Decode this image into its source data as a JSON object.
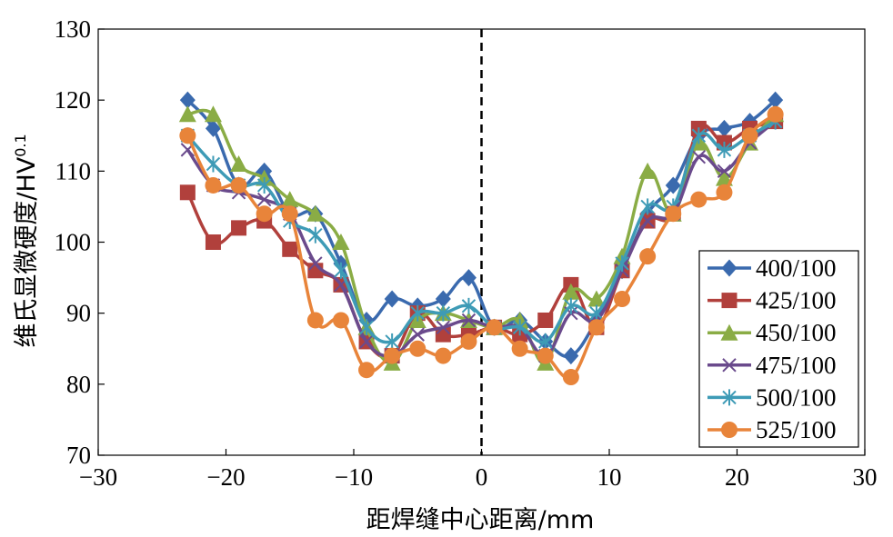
{
  "chart_data": {
    "type": "line",
    "xlabel": "距焊缝中心距离/mm",
    "ylabel": "维氏显微硬度/HV",
    "ylabel_sup": "0.1",
    "xlim": [
      -30,
      30
    ],
    "ylim": [
      70,
      130
    ],
    "xticks": [
      -30,
      -20,
      -10,
      0,
      10,
      20,
      30
    ],
    "xtick_labels": [
      "−30",
      "−20",
      "−10",
      "0",
      "10",
      "20",
      "30"
    ],
    "yticks": [
      70,
      80,
      90,
      100,
      110,
      120,
      130
    ],
    "ytick_labels": [
      "70",
      "80",
      "90",
      "100",
      "110",
      "120",
      "130"
    ],
    "grid": false,
    "legend_position": "right",
    "reference_line": {
      "x": 0,
      "style": "dashed"
    },
    "x": [
      -23,
      -21,
      -19,
      -17,
      -15,
      -13,
      -11,
      -9,
      -7,
      -5,
      -3,
      -1,
      1,
      3,
      5,
      7,
      9,
      11,
      13,
      15,
      17,
      19,
      21,
      23
    ],
    "series": [
      {
        "name": "400/100",
        "color": "#3a6aae",
        "marker": "diamond",
        "values": [
          120,
          116,
          108,
          110,
          104,
          104,
          97,
          89,
          92,
          91,
          92,
          95,
          88,
          89,
          86,
          84,
          89,
          96,
          104,
          108,
          115,
          116,
          117,
          120
        ]
      },
      {
        "name": "425/100",
        "color": "#b1403c",
        "marker": "square",
        "values": [
          107,
          100,
          102,
          103,
          99,
          96,
          94,
          86,
          84,
          90,
          87,
          87,
          88,
          87,
          89,
          94,
          88,
          96,
          103,
          104,
          116,
          114,
          116,
          117
        ]
      },
      {
        "name": "450/100",
        "color": "#8aac45",
        "marker": "triangle",
        "values": [
          118,
          118,
          111,
          109,
          106,
          104,
          100,
          88,
          83,
          89,
          90,
          89,
          88,
          89,
          83,
          93,
          92,
          98,
          110,
          104,
          114,
          109,
          114,
          118
        ]
      },
      {
        "name": "475/100",
        "color": "#6a4a8c",
        "marker": "x",
        "values": [
          113,
          108,
          107,
          106,
          104,
          97,
          94,
          86,
          84,
          87,
          88,
          89,
          88,
          88,
          84,
          90,
          89,
          96,
          103,
          104,
          112,
          110,
          114,
          117
        ]
      },
      {
        "name": "500/100",
        "color": "#3e9bb6",
        "marker": "asterisk",
        "values": [
          115,
          111,
          108,
          108,
          103,
          101,
          96,
          88,
          86,
          90,
          90,
          91,
          88,
          88,
          86,
          91,
          90,
          97,
          105,
          105,
          115,
          113,
          115,
          117
        ]
      },
      {
        "name": "525/100",
        "color": "#e8843a",
        "marker": "circle",
        "values": [
          115,
          108,
          108,
          104,
          104,
          89,
          89,
          82,
          84,
          85,
          84,
          86,
          88,
          85,
          84,
          81,
          88,
          92,
          98,
          104,
          106,
          107,
          115,
          118
        ]
      }
    ]
  }
}
